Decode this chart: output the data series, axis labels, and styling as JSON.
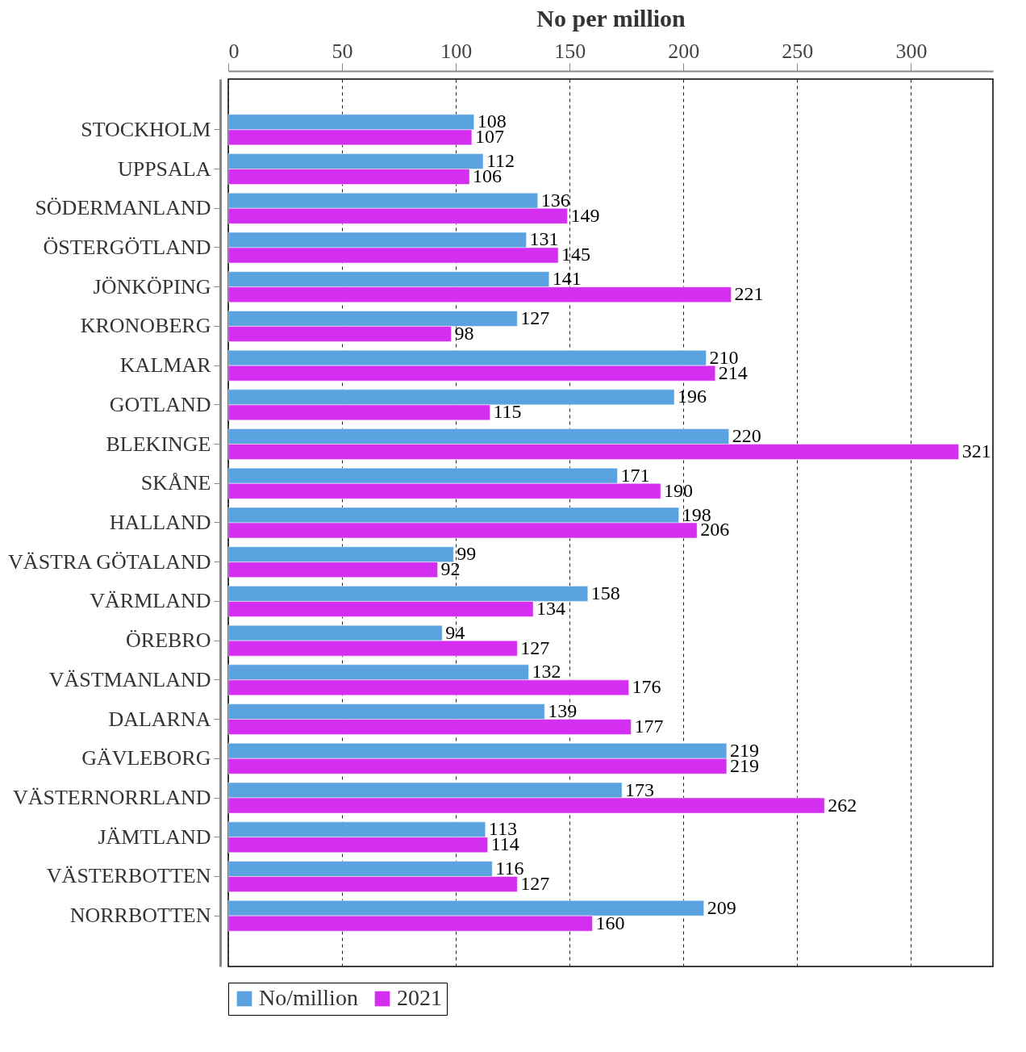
{
  "chart_data": {
    "type": "bar",
    "orientation": "horizontal",
    "xlabel": "No per million",
    "categories": [
      "STOCKHOLM",
      "UPPSALA",
      "SÖDERMANLAND",
      "ÖSTERGÖTLAND",
      "JÖNKÖPING",
      "KRONOBERG",
      "KALMAR",
      "GOTLAND",
      "BLEKINGE",
      "SKÅNE",
      "HALLAND",
      "VÄSTRA GÖTALAND",
      "VÄRMLAND",
      "ÖREBRO",
      "VÄSTMANLAND",
      "DALARNA",
      "GÄVLEBORG",
      "VÄSTERNORRLAND",
      "JÄMTLAND",
      "VÄSTERBOTTEN",
      "NORRBOTTEN"
    ],
    "series": [
      {
        "name": "No/million",
        "color": "#5ba3e0",
        "values": [
          108,
          112,
          136,
          131,
          141,
          127,
          210,
          196,
          220,
          171,
          198,
          99,
          158,
          94,
          132,
          139,
          219,
          173,
          113,
          116,
          209
        ]
      },
      {
        "name": "2021",
        "color": "#d42ef0",
        "values": [
          107,
          106,
          149,
          145,
          221,
          98,
          214,
          115,
          321,
          190,
          206,
          92,
          134,
          127,
          176,
          177,
          219,
          262,
          114,
          127,
          160
        ]
      }
    ],
    "xlim": [
      0,
      336
    ],
    "xticks": [
      0,
      50,
      100,
      150,
      200,
      250,
      300
    ],
    "grid": "x",
    "data_labels": true,
    "legend": "bottom"
  }
}
